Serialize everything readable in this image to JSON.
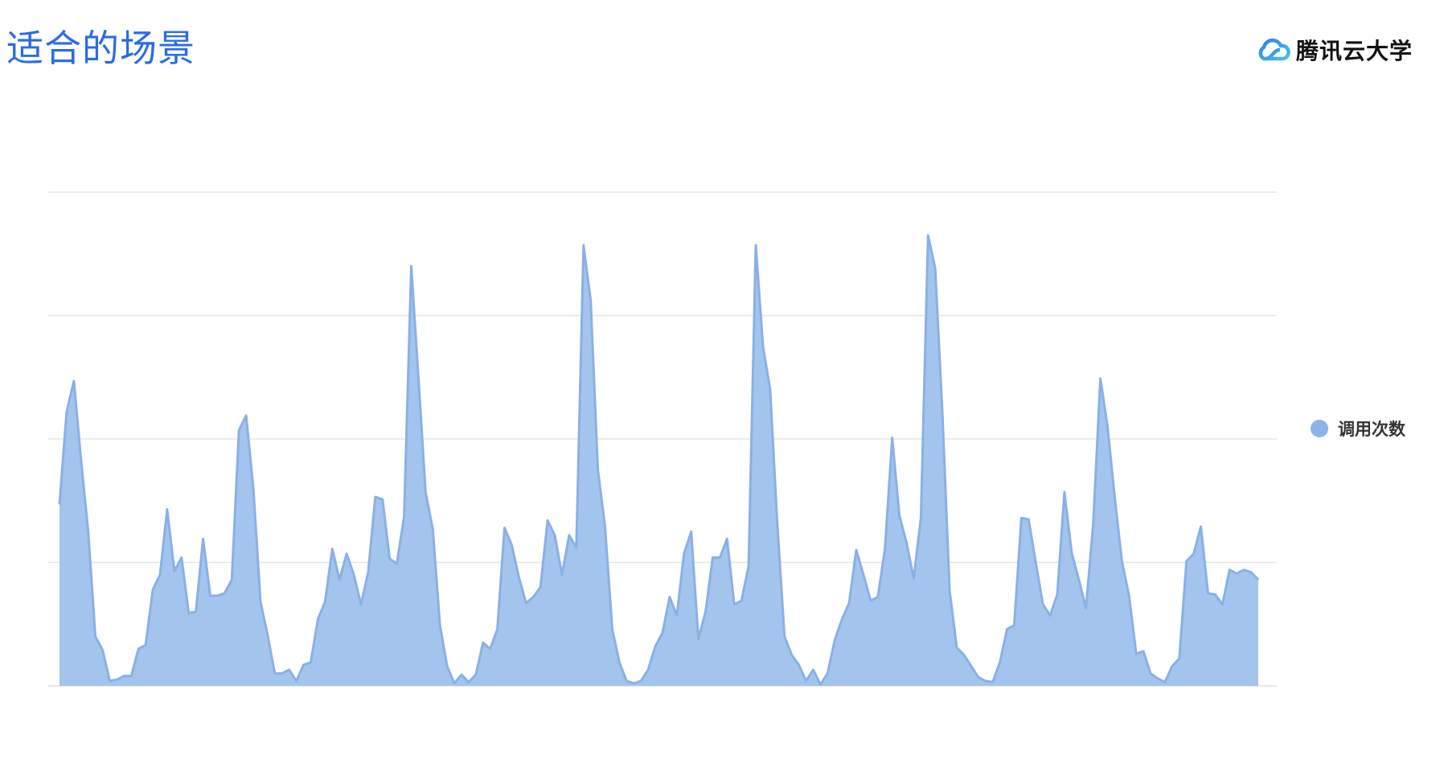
{
  "header": {
    "title": "适合的场景",
    "brand": "腾讯云大学",
    "brand_icon": "cloud-logo-icon"
  },
  "colors": {
    "title": "#2a6de3",
    "fill": "#a3c4ec",
    "line": "#8ab0e6",
    "legend_dot": "#8db3e8",
    "grid": "#e6e6e6"
  },
  "chart_data": {
    "type": "area",
    "title": "",
    "xlabel": "",
    "ylabel": "",
    "ylim": [
      0,
      4
    ],
    "grid": true,
    "legend_position": "right",
    "series": [
      {
        "name": "调用次数",
        "values": [
          1.47,
          2.22,
          2.47,
          1.83,
          1.25,
          0.4,
          0.29,
          0.04,
          0.05,
          0.08,
          0.08,
          0.3,
          0.33,
          0.78,
          0.9,
          1.43,
          0.93,
          1.04,
          0.59,
          0.6,
          1.19,
          0.73,
          0.73,
          0.75,
          0.86,
          2.07,
          2.19,
          1.6,
          0.68,
          0.41,
          0.1,
          0.1,
          0.13,
          0.04,
          0.17,
          0.19,
          0.54,
          0.68,
          1.11,
          0.86,
          1.07,
          0.9,
          0.66,
          0.92,
          1.53,
          1.51,
          1.03,
          0.99,
          1.37,
          3.4,
          2.5,
          1.57,
          1.27,
          0.49,
          0.16,
          0.02,
          0.09,
          0.03,
          0.09,
          0.35,
          0.3,
          0.46,
          1.28,
          1.14,
          0.88,
          0.67,
          0.72,
          0.8,
          1.34,
          1.22,
          0.9,
          1.22,
          1.12,
          3.57,
          3.12,
          1.75,
          1.29,
          0.46,
          0.19,
          0.04,
          0.02,
          0.04,
          0.13,
          0.32,
          0.43,
          0.72,
          0.57,
          1.07,
          1.25,
          0.38,
          0.6,
          1.04,
          1.04,
          1.19,
          0.66,
          0.69,
          0.97,
          3.57,
          2.75,
          2.4,
          1.31,
          0.4,
          0.25,
          0.17,
          0.04,
          0.13,
          0.01,
          0.1,
          0.37,
          0.54,
          0.67,
          1.1,
          0.9,
          0.69,
          0.72,
          1.11,
          2.01,
          1.38,
          1.16,
          0.87,
          1.36,
          3.65,
          3.38,
          2.2,
          0.77,
          0.31,
          0.25,
          0.16,
          0.07,
          0.04,
          0.03,
          0.19,
          0.46,
          0.49,
          1.36,
          1.35,
          1.0,
          0.66,
          0.57,
          0.74,
          1.57,
          1.08,
          0.86,
          0.63,
          1.31,
          2.49,
          2.1,
          1.53,
          1.01,
          0.73,
          0.26,
          0.28,
          0.1,
          0.06,
          0.03,
          0.16,
          0.22,
          1.01,
          1.07,
          1.29,
          0.75,
          0.74,
          0.66,
          0.94,
          0.91,
          0.94,
          0.92,
          0.86
        ]
      }
    ]
  }
}
